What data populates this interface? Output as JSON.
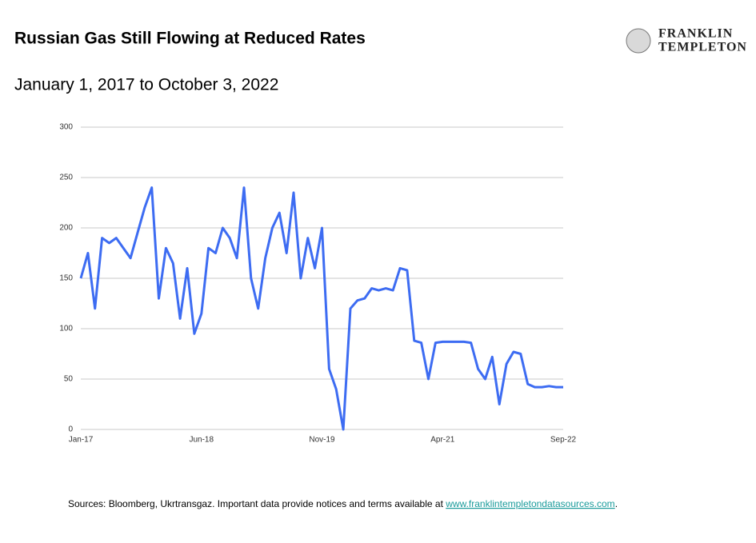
{
  "logo": {
    "line1": "FRANKLIN",
    "line2": "TEMPLETON"
  },
  "chart_data": {
    "type": "line",
    "title": "Russian Gas Still Flowing at Reduced Rates",
    "subtitle": "January 1, 2017 to October 3, 2022",
    "categories": [
      "Jan-17",
      null,
      null,
      null,
      null,
      null,
      null,
      null,
      null,
      null,
      null,
      null,
      null,
      null,
      null,
      null,
      null,
      "Jun-18",
      null,
      null,
      null,
      null,
      null,
      null,
      null,
      null,
      null,
      null,
      null,
      null,
      null,
      null,
      null,
      null,
      "Nov-19",
      null,
      null,
      null,
      null,
      null,
      null,
      null,
      null,
      null,
      null,
      null,
      null,
      null,
      null,
      null,
      null,
      "Apr-21",
      null,
      null,
      null,
      null,
      null,
      null,
      null,
      null,
      null,
      null,
      null,
      null,
      null,
      null,
      null,
      null,
      "Sep-22"
    ],
    "series": [
      {
        "color": "#3d6cf2",
        "values": [
          150,
          175,
          120,
          190,
          185,
          190,
          180,
          170,
          195,
          220,
          240,
          130,
          180,
          165,
          110,
          160,
          95,
          115,
          180,
          175,
          200,
          190,
          170,
          240,
          150,
          120,
          170,
          200,
          215,
          175,
          235,
          150,
          190,
          160,
          200,
          60,
          40,
          0,
          120,
          128,
          130,
          140,
          138,
          140,
          138,
          160,
          158,
          88,
          86,
          50,
          86,
          87,
          87,
          87,
          87,
          86,
          60,
          50,
          72,
          25,
          65,
          77,
          75,
          45,
          42,
          42,
          43,
          42,
          42
        ]
      }
    ],
    "ylim": [
      0,
      300
    ],
    "yticks": [
      0,
      50,
      100,
      150,
      200,
      250,
      300
    ],
    "grid": true
  },
  "footer": {
    "text": "Sources: Bloomberg, Ukrtransgaz. Important data provide notices and terms available at ",
    "link": "www.franklintempletondatasources.com",
    "end": "."
  }
}
